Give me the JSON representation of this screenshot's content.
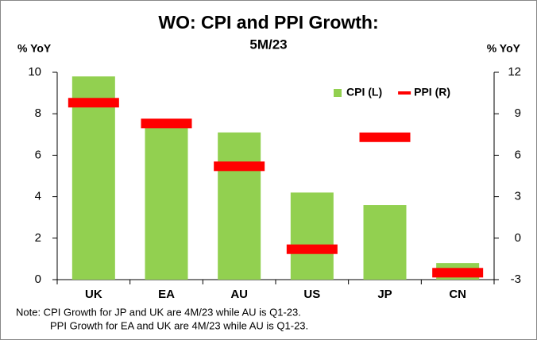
{
  "chart_data": {
    "type": "bar",
    "title": "WO: CPI and PPI Growth:",
    "subtitle": "5M/23",
    "y_label": "% YoY",
    "y2_label": "% YoY",
    "categories": [
      "UK",
      "EA",
      "AU",
      "US",
      "JP",
      "CN"
    ],
    "series": [
      {
        "name": "CPI (L)",
        "color": "#92d050",
        "axis": "y",
        "marker": "bar",
        "values": [
          9.8,
          7.7,
          7.1,
          4.2,
          3.6,
          0.8
        ]
      },
      {
        "name": "PPI  (R)",
        "color": "#ff0000",
        "axis": "y2",
        "marker": "dash",
        "values": [
          9.8,
          8.3,
          5.2,
          -0.8,
          7.3,
          -2.5
        ]
      }
    ],
    "ylim": [
      0,
      10
    ],
    "yticks": [
      0,
      2,
      4,
      6,
      8,
      10
    ],
    "y2lim": [
      -3,
      12
    ],
    "y2ticks": [
      -3,
      0,
      3,
      6,
      9,
      12
    ],
    "notes": [
      "Note: CPI Growth for JP and UK are 4M/23 while AU is Q1-23.",
      "PPI Growth for EA and UK are 4M/23 while AU is Q1-23."
    ],
    "legend": "top-right"
  }
}
